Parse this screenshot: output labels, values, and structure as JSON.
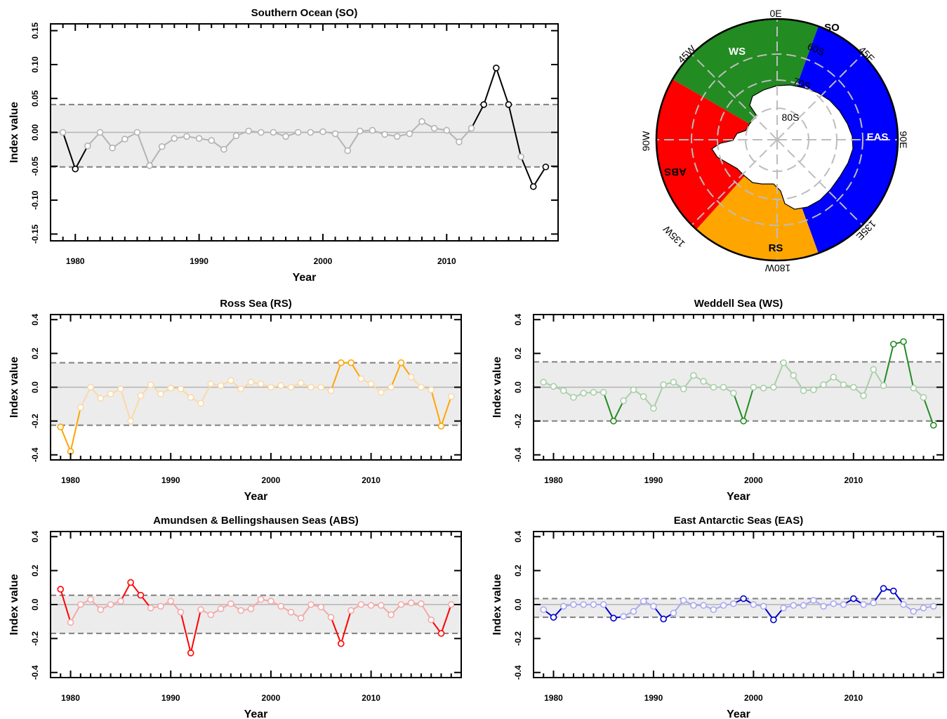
{
  "chart_data": [
    {
      "id": "so",
      "type": "line",
      "title": "Southern Ocean (SO)",
      "xlabel": "Year",
      "ylabel": "Index value",
      "xlim": [
        1978,
        2019
      ],
      "ylim": [
        -0.16,
        0.16
      ],
      "yticks": [
        -0.15,
        -0.1,
        -0.05,
        0.0,
        0.05,
        0.1,
        0.15
      ],
      "ytick_labels": [
        "-0.15",
        "-0.10",
        "-0.05",
        "0.00",
        "0.05",
        "0.10",
        "0.15"
      ],
      "xticks": [
        1980,
        1990,
        2000,
        2010
      ],
      "xtick_labels": [
        "1980",
        "1990",
        "2000",
        "2010"
      ],
      "threshold_upper": 0.041,
      "threshold_lower": -0.051,
      "color": "#000000",
      "faded_color": "#b4b4b4",
      "x": [
        1979,
        1980,
        1981,
        1982,
        1983,
        1984,
        1985,
        1986,
        1987,
        1988,
        1989,
        1990,
        1991,
        1992,
        1993,
        1994,
        1995,
        1996,
        1997,
        1998,
        1999,
        2000,
        2001,
        2002,
        2003,
        2004,
        2005,
        2006,
        2007,
        2008,
        2009,
        2010,
        2011,
        2012,
        2013,
        2014,
        2015,
        2016,
        2017,
        2018
      ],
      "values": [
        0.0,
        -0.054,
        -0.02,
        0.0,
        -0.023,
        -0.01,
        0.0,
        -0.049,
        -0.021,
        -0.009,
        -0.006,
        -0.009,
        -0.012,
        -0.025,
        -0.005,
        0.002,
        0.0,
        0.0,
        -0.006,
        0.0,
        0.0,
        0.001,
        -0.002,
        -0.027,
        0.002,
        0.003,
        -0.003,
        -0.006,
        -0.002,
        0.016,
        0.006,
        0.003,
        -0.014,
        0.006,
        0.041,
        0.095,
        0.041,
        -0.036,
        -0.08,
        -0.051
      ]
    },
    {
      "id": "rs",
      "type": "line",
      "title": "Ross Sea (RS)",
      "xlabel": "Year",
      "ylabel": "Index value",
      "xlim": [
        1978,
        2019
      ],
      "ylim": [
        -0.43,
        0.43
      ],
      "yticks": [
        -0.4,
        -0.2,
        0.0,
        0.2,
        0.4
      ],
      "ytick_labels": [
        "-0.4",
        "-0.2",
        "0.0",
        "0.2",
        "0.4"
      ],
      "xticks": [
        1980,
        1990,
        2000,
        2010
      ],
      "xtick_labels": [
        "1980",
        "1990",
        "2000",
        "2010"
      ],
      "threshold_upper": 0.145,
      "threshold_lower": -0.225,
      "color": "#ffa500",
      "faded_color": "#fad9a8",
      "x": [
        1979,
        1980,
        1981,
        1982,
        1983,
        1984,
        1985,
        1986,
        1987,
        1988,
        1989,
        1990,
        1991,
        1992,
        1993,
        1994,
        1995,
        1996,
        1997,
        1998,
        1999,
        2000,
        2001,
        2002,
        2003,
        2004,
        2005,
        2006,
        2007,
        2008,
        2009,
        2010,
        2011,
        2012,
        2013,
        2014,
        2015,
        2016,
        2017,
        2018
      ],
      "values": [
        -0.235,
        -0.38,
        -0.12,
        0.0,
        -0.065,
        -0.04,
        -0.01,
        -0.2,
        -0.05,
        0.015,
        -0.04,
        -0.005,
        -0.01,
        -0.06,
        -0.095,
        0.02,
        0.01,
        0.04,
        -0.01,
        0.03,
        0.02,
        0.0,
        0.01,
        0.0,
        0.025,
        0.0,
        0.0,
        -0.02,
        0.145,
        0.145,
        0.05,
        0.02,
        -0.03,
        0.0,
        0.145,
        0.06,
        0.0,
        -0.015,
        -0.23,
        -0.055
      ]
    },
    {
      "id": "ws",
      "type": "line",
      "title": "Weddell Sea (WS)",
      "xlabel": "Year",
      "ylabel": "Index value",
      "xlim": [
        1978,
        2019
      ],
      "ylim": [
        -0.43,
        0.43
      ],
      "yticks": [
        -0.4,
        -0.2,
        0.0,
        0.2,
        0.4
      ],
      "ytick_labels": [
        "-0.4",
        "-0.2",
        "0.0",
        "0.2",
        "0.4"
      ],
      "xticks": [
        1980,
        1990,
        2000,
        2010
      ],
      "xtick_labels": [
        "1980",
        "1990",
        "2000",
        "2010"
      ],
      "threshold_upper": 0.15,
      "threshold_lower": -0.2,
      "color": "#228b22",
      "faded_color": "#a9cfa9",
      "x": [
        1979,
        1980,
        1981,
        1982,
        1983,
        1984,
        1985,
        1986,
        1987,
        1988,
        1989,
        1990,
        1991,
        1992,
        1993,
        1994,
        1995,
        1996,
        1997,
        1998,
        1999,
        2000,
        2001,
        2002,
        2003,
        2004,
        2005,
        2006,
        2007,
        2008,
        2009,
        2010,
        2011,
        2012,
        2013,
        2014,
        2015,
        2016,
        2017,
        2018
      ],
      "values": [
        0.03,
        0.005,
        -0.02,
        -0.06,
        -0.035,
        -0.03,
        -0.03,
        -0.2,
        -0.08,
        -0.015,
        -0.055,
        -0.125,
        0.015,
        0.03,
        -0.01,
        0.07,
        0.035,
        0.0,
        0.0,
        -0.035,
        -0.2,
        0.0,
        -0.005,
        0.0,
        0.145,
        0.07,
        -0.02,
        -0.015,
        0.015,
        0.06,
        0.015,
        0.0,
        -0.05,
        0.105,
        0.01,
        0.255,
        0.27,
        -0.005,
        -0.06,
        -0.225
      ]
    },
    {
      "id": "abs",
      "type": "line",
      "title": "Amundsen & Bellingshausen Seas (ABS)",
      "xlabel": "Year",
      "ylabel": "Index value",
      "xlim": [
        1978,
        2019
      ],
      "ylim": [
        -0.43,
        0.43
      ],
      "yticks": [
        -0.4,
        -0.2,
        0.0,
        0.2,
        0.4
      ],
      "ytick_labels": [
        "-0.4",
        "-0.2",
        "0.0",
        "0.2",
        "0.4"
      ],
      "xticks": [
        1980,
        1990,
        2000,
        2010
      ],
      "xtick_labels": [
        "1980",
        "1990",
        "2000",
        "2010"
      ],
      "threshold_upper": 0.055,
      "threshold_lower": -0.17,
      "color": "#ff0000",
      "faded_color": "#f5a9a9",
      "x": [
        1979,
        1980,
        1981,
        1982,
        1983,
        1984,
        1985,
        1986,
        1987,
        1988,
        1989,
        1990,
        1991,
        1992,
        1993,
        1994,
        1995,
        1996,
        1997,
        1998,
        1999,
        2000,
        2001,
        2002,
        2003,
        2004,
        2005,
        2006,
        2007,
        2008,
        2009,
        2010,
        2011,
        2012,
        2013,
        2014,
        2015,
        2016,
        2017,
        2018
      ],
      "values": [
        0.09,
        -0.105,
        0.0,
        0.03,
        -0.03,
        0.0,
        0.02,
        0.13,
        0.055,
        -0.02,
        -0.01,
        0.02,
        -0.045,
        -0.285,
        -0.03,
        -0.06,
        -0.025,
        0.005,
        -0.035,
        -0.025,
        0.03,
        0.02,
        -0.01,
        -0.045,
        -0.08,
        0.0,
        -0.015,
        -0.075,
        -0.23,
        -0.035,
        0.0,
        -0.005,
        -0.005,
        -0.06,
        0.0,
        0.01,
        0.005,
        -0.09,
        -0.17,
        0.0
      ]
    },
    {
      "id": "eas",
      "type": "line",
      "title": "East Antarctic Seas (EAS)",
      "xlabel": "Year",
      "ylabel": "Index value",
      "xlim": [
        1978,
        2019
      ],
      "ylim": [
        -0.43,
        0.43
      ],
      "yticks": [
        -0.4,
        -0.2,
        0.0,
        0.2,
        0.4
      ],
      "ytick_labels": [
        "-0.4",
        "-0.2",
        "0.0",
        "0.2",
        "0.4"
      ],
      "xticks": [
        1980,
        1990,
        2000,
        2010
      ],
      "xtick_labels": [
        "1980",
        "1990",
        "2000",
        "2010"
      ],
      "threshold_upper": 0.035,
      "threshold_lower": -0.075,
      "color": "#0000cd",
      "faded_color": "#a9a9f2",
      "x": [
        1979,
        1980,
        1981,
        1982,
        1983,
        1984,
        1985,
        1986,
        1987,
        1988,
        1989,
        1990,
        1991,
        1992,
        1993,
        1994,
        1995,
        1996,
        1997,
        1998,
        1999,
        2000,
        2001,
        2002,
        2003,
        2004,
        2005,
        2006,
        2007,
        2008,
        2009,
        2010,
        2011,
        2012,
        2013,
        2014,
        2015,
        2016,
        2017,
        2018
      ],
      "values": [
        -0.03,
        -0.075,
        -0.01,
        0.0,
        0.0,
        0.0,
        0.0,
        -0.08,
        -0.07,
        -0.04,
        0.02,
        -0.01,
        -0.085,
        -0.05,
        0.025,
        -0.005,
        -0.005,
        -0.03,
        -0.005,
        0.005,
        0.035,
        0.0,
        -0.01,
        -0.09,
        -0.02,
        -0.005,
        -0.005,
        0.025,
        -0.01,
        0.005,
        0.0,
        0.035,
        0.0,
        0.01,
        0.095,
        0.08,
        0.0,
        -0.04,
        -0.02,
        -0.01
      ]
    }
  ],
  "map": {
    "labels": {
      "so": "SO",
      "ws": "WS",
      "eas": "EAS",
      "rs": "RS",
      "abs": "ABS",
      "lon_0e": "0E",
      "lon_45e": "45E",
      "lon_90e": "90E",
      "lon_135e": "135E",
      "lon_180w": "180W",
      "lon_135w": "135W",
      "lon_90w": "90W",
      "lon_45w": "45W",
      "lat_60s": "60S",
      "lat_70s": "70S",
      "lat_80s": "80S"
    },
    "colors": {
      "ws": "#228b22",
      "eas": "#0000ff",
      "rs": "#ffa500",
      "abs": "#ff0000",
      "land": "#ffffff",
      "grid": "#bdbdbd"
    }
  }
}
